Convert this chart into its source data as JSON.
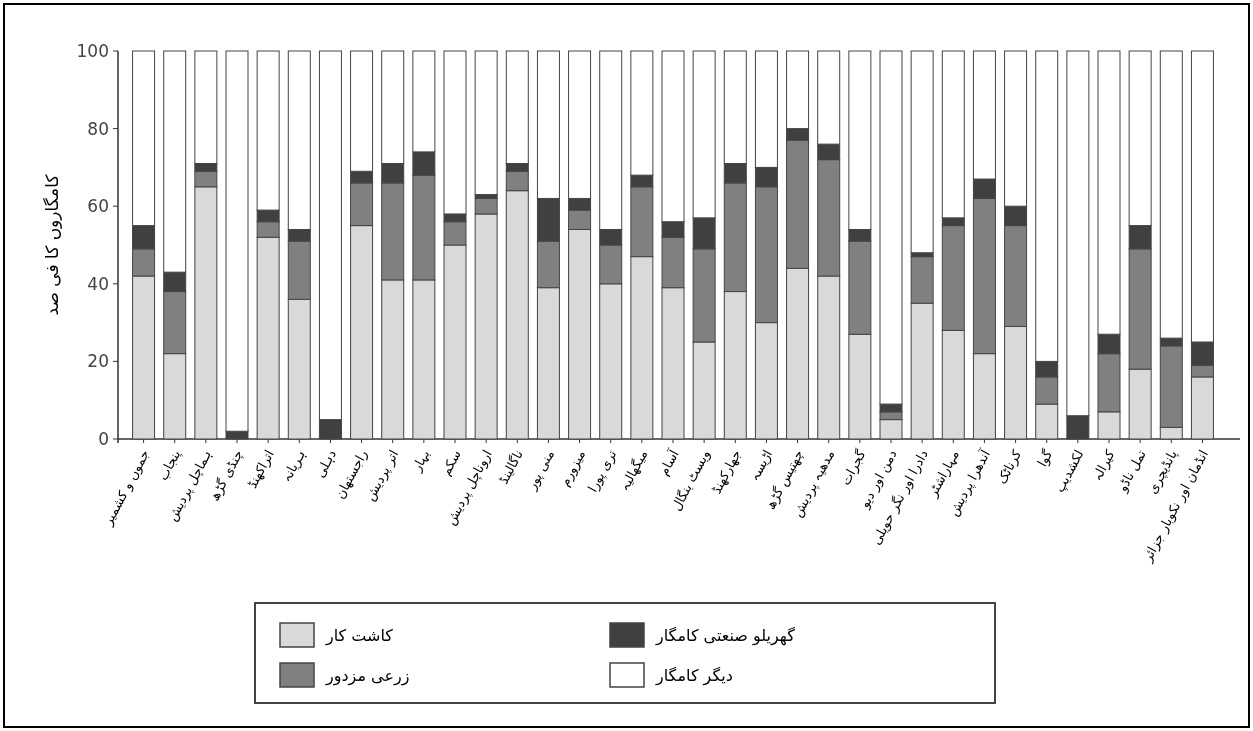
{
  "chart_data": {
    "type": "bar",
    "stacked": true,
    "ylabel": "کامگاروں کا فی صد",
    "ylim": [
      0,
      100
    ],
    "yticks": [
      0,
      20,
      40,
      60,
      80,
      100
    ],
    "grid": false,
    "legend": "bottom",
    "categories": [
      "جموں و کشمیر",
      "پنجاب",
      "ہماچل پردیش",
      "چنڈی گڑھ",
      "اتراکھنڈ",
      "ہریانہ",
      "دہلی",
      "راجستھان",
      "اتر پردیش",
      "بہار",
      "سکم",
      "اروناچل پردیش",
      "ناگالینڈ",
      "منی پور",
      "میزورم",
      "تری پورا",
      "میگھالیہ",
      "آسام",
      "ویسٹ بنگال",
      "جھارکھنڈ",
      "اڑیسہ",
      "چھتیس گڑھ",
      "مدھیہ پردیش",
      "گجرات",
      "دمن اور دیو",
      "دادرا اور نگر حویلی",
      "مہاراشٹر",
      "آندھرا پردیش",
      "کرناٹک",
      "گوا",
      "لکشدیپ",
      "کیرالہ",
      "تمل ناڈو",
      "پانڈیچری",
      "انڈمان اور نکوبار جزائر"
    ],
    "series": [
      {
        "name": "کاشت کار",
        "color": "#d9d9d9",
        "values": [
          42,
          22,
          65,
          0,
          52,
          36,
          0,
          55,
          41,
          41,
          50,
          58,
          64,
          39,
          54,
          40,
          47,
          39,
          25,
          38,
          30,
          44,
          42,
          27,
          5,
          35,
          28,
          22,
          29,
          9,
          0,
          7,
          18,
          3,
          16
        ]
      },
      {
        "name": "زرعی مزدور",
        "color": "#808080",
        "values": [
          7,
          16,
          4,
          0,
          4,
          15,
          0,
          11,
          25,
          27,
          6,
          4,
          5,
          12,
          5,
          10,
          18,
          13,
          24,
          28,
          35,
          33,
          30,
          24,
          2,
          12,
          27,
          40,
          26,
          7,
          0,
          15,
          31,
          21,
          3
        ]
      },
      {
        "name": "گھریلو صنعتی کامگار",
        "color": "#404040",
        "values": [
          6,
          5,
          2,
          2,
          3,
          3,
          5,
          3,
          5,
          6,
          2,
          1,
          2,
          11,
          3,
          4,
          3,
          4,
          8,
          5,
          5,
          3,
          4,
          3,
          2,
          1,
          2,
          5,
          5,
          4,
          6,
          5,
          6,
          2,
          6
        ]
      },
      {
        "name": "دیگر کامگار",
        "color": "#ffffff",
        "values": [
          45,
          57,
          29,
          98,
          41,
          46,
          95,
          31,
          29,
          26,
          42,
          37,
          29,
          38,
          38,
          46,
          32,
          44,
          43,
          29,
          30,
          20,
          24,
          46,
          91,
          52,
          43,
          33,
          40,
          80,
          94,
          73,
          45,
          74,
          75
        ]
      }
    ]
  }
}
